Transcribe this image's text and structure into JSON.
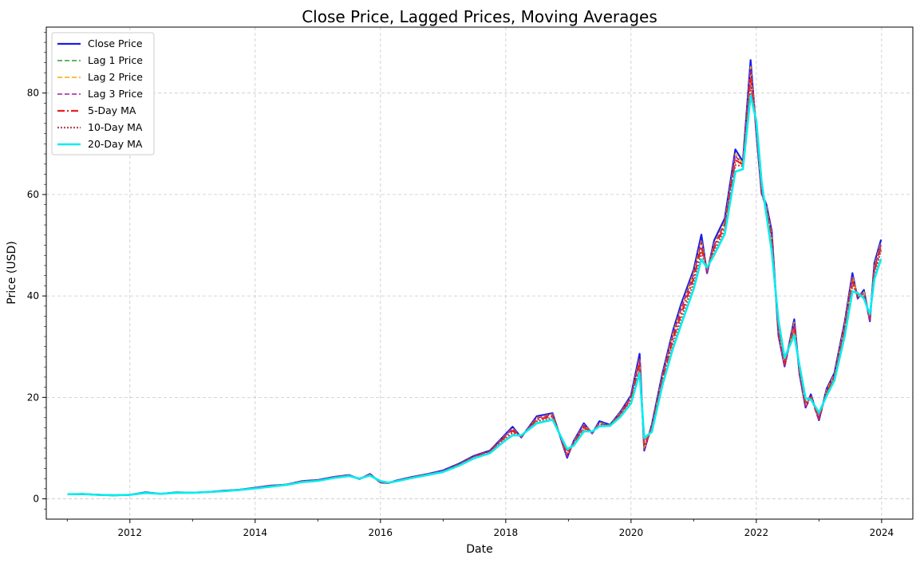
{
  "chart_data": {
    "type": "line",
    "title": "Close Price, Lagged Prices, Moving Averages",
    "xlabel": "Date",
    "ylabel": "Price (USD)",
    "x_ticks": [
      "2012",
      "2014",
      "2016",
      "2018",
      "2020",
      "2022",
      "2024"
    ],
    "y_ticks": [
      0,
      20,
      40,
      60,
      80
    ],
    "xlim": [
      "2010-09-01",
      "2024-07-01"
    ],
    "ylim": [
      -4,
      93
    ],
    "grid": true,
    "legend_position": "top-left",
    "x": [
      "2011-01-03",
      "2011-04-01",
      "2011-07-01",
      "2011-10-01",
      "2012-01-01",
      "2012-04-01",
      "2012-07-01",
      "2012-10-01",
      "2013-01-01",
      "2013-04-01",
      "2013-07-01",
      "2013-10-01",
      "2014-01-01",
      "2014-04-01",
      "2014-07-01",
      "2014-10-01",
      "2015-01-01",
      "2015-04-01",
      "2015-07-01",
      "2015-09-01",
      "2015-11-01",
      "2016-01-01",
      "2016-02-15",
      "2016-04-01",
      "2016-07-01",
      "2016-10-01",
      "2017-01-01",
      "2017-04-01",
      "2017-07-01",
      "2017-10-01",
      "2018-01-01",
      "2018-02-10",
      "2018-04-01",
      "2018-07-01",
      "2018-10-01",
      "2018-12-25",
      "2019-02-01",
      "2019-04-01",
      "2019-05-20",
      "2019-07-01",
      "2019-09-01",
      "2019-11-01",
      "2020-01-01",
      "2020-02-20",
      "2020-03-18",
      "2020-05-01",
      "2020-07-01",
      "2020-09-01",
      "2020-10-20",
      "2021-01-01",
      "2021-02-15",
      "2021-03-20",
      "2021-05-01",
      "2021-07-01",
      "2021-09-01",
      "2021-10-15",
      "2021-11-29",
      "2022-01-01",
      "2022-02-01",
      "2022-03-01",
      "2022-04-01",
      "2022-05-10",
      "2022-06-15",
      "2022-08-10",
      "2022-09-10",
      "2022-10-15",
      "2022-11-15",
      "2023-01-01",
      "2023-02-15",
      "2023-04-01",
      "2023-06-01",
      "2023-07-15",
      "2023-08-15",
      "2023-09-20",
      "2023-10-25",
      "2023-11-20",
      "2023-12-29"
    ],
    "series": [
      {
        "name": "Close Price",
        "color": "#1a1aee",
        "style": "solid",
        "width": 2.2,
        "values": [
          0.9,
          0.95,
          0.8,
          0.7,
          0.8,
          1.3,
          1.0,
          1.3,
          1.2,
          1.35,
          1.6,
          1.8,
          2.2,
          2.6,
          2.8,
          3.5,
          3.7,
          4.3,
          4.7,
          3.9,
          4.9,
          3.2,
          3.1,
          3.6,
          4.3,
          4.9,
          5.6,
          6.9,
          8.5,
          9.5,
          12.8,
          14.2,
          12.1,
          16.3,
          16.9,
          8.1,
          11.4,
          14.9,
          12.9,
          15.3,
          14.6,
          17.2,
          20.4,
          28.6,
          9.5,
          14.6,
          24.6,
          33.1,
          38.5,
          45.2,
          52.1,
          44.5,
          51.0,
          55.3,
          68.9,
          66.5,
          86.5,
          72.1,
          60.2,
          58.0,
          52.8,
          32.2,
          26.1,
          35.4,
          24.6,
          18.0,
          20.6,
          15.5,
          21.7,
          24.8,
          35.0,
          44.5,
          39.5,
          41.2,
          35.0,
          46.5,
          51.1
        ]
      },
      {
        "name": "Lag 1 Price",
        "color": "#2ca02c",
        "style": "dashed",
        "width": 1.6,
        "values": [
          0.9,
          0.95,
          0.8,
          0.7,
          0.8,
          1.25,
          1.0,
          1.25,
          1.2,
          1.35,
          1.55,
          1.8,
          2.15,
          2.55,
          2.8,
          3.45,
          3.65,
          4.25,
          4.65,
          3.9,
          4.85,
          3.25,
          3.1,
          3.55,
          4.25,
          4.85,
          5.5,
          6.8,
          8.4,
          9.4,
          12.6,
          13.9,
          12.2,
          16.0,
          16.7,
          8.4,
          11.2,
          14.6,
          13.0,
          15.0,
          14.5,
          17.0,
          20.1,
          27.8,
          9.8,
          14.3,
          24.1,
          32.5,
          37.8,
          44.6,
          51.0,
          44.8,
          50.3,
          54.6,
          68.0,
          66.2,
          85.2,
          72.6,
          60.5,
          57.6,
          52.1,
          32.6,
          26.3,
          34.8,
          24.9,
          18.3,
          20.3,
          15.7,
          21.4,
          24.5,
          34.5,
          43.9,
          39.8,
          40.8,
          35.3,
          45.9,
          50.6
        ]
      },
      {
        "name": "Lag 2 Price",
        "color": "#ffa500",
        "style": "dashed",
        "width": 1.6,
        "values": [
          0.9,
          0.95,
          0.8,
          0.7,
          0.8,
          1.25,
          1.0,
          1.25,
          1.2,
          1.35,
          1.55,
          1.8,
          2.15,
          2.55,
          2.8,
          3.45,
          3.65,
          4.25,
          4.65,
          3.9,
          4.85,
          3.25,
          3.1,
          3.55,
          4.25,
          4.85,
          5.5,
          6.8,
          8.4,
          9.4,
          12.6,
          13.9,
          12.2,
          16.0,
          16.7,
          8.4,
          11.2,
          14.6,
          13.0,
          15.0,
          14.5,
          17.0,
          20.1,
          27.8,
          9.8,
          14.3,
          24.1,
          32.5,
          37.8,
          44.6,
          51.0,
          44.8,
          50.3,
          54.6,
          68.0,
          66.2,
          85.2,
          72.6,
          60.5,
          57.6,
          52.1,
          32.6,
          26.3,
          34.8,
          24.9,
          18.3,
          20.3,
          15.7,
          21.4,
          24.5,
          34.5,
          43.9,
          39.8,
          40.8,
          35.3,
          45.9,
          50.6
        ]
      },
      {
        "name": "Lag 3 Price",
        "color": "#a0209a",
        "style": "dashed",
        "width": 1.6,
        "values": [
          0.9,
          0.95,
          0.8,
          0.7,
          0.8,
          1.25,
          1.0,
          1.25,
          1.2,
          1.35,
          1.55,
          1.8,
          2.15,
          2.55,
          2.8,
          3.45,
          3.65,
          4.25,
          4.65,
          3.9,
          4.85,
          3.25,
          3.1,
          3.55,
          4.25,
          4.85,
          5.5,
          6.8,
          8.4,
          9.4,
          12.5,
          13.8,
          12.2,
          15.9,
          16.6,
          8.3,
          11.1,
          14.5,
          12.9,
          14.9,
          14.4,
          16.9,
          20.0,
          27.5,
          9.6,
          14.1,
          23.9,
          32.2,
          37.5,
          44.2,
          50.6,
          44.3,
          50.0,
          54.2,
          67.6,
          65.8,
          84.7,
          72.1,
          60.0,
          57.2,
          51.8,
          32.1,
          25.9,
          34.4,
          24.5,
          17.9,
          20.0,
          15.4,
          21.1,
          24.2,
          34.2,
          43.6,
          39.4,
          40.5,
          34.9,
          45.5,
          50.2
        ]
      },
      {
        "name": "5-Day MA",
        "color": "#e8201c",
        "style": "dashdot",
        "width": 2.2,
        "values": [
          0.9,
          0.95,
          0.8,
          0.7,
          0.8,
          1.2,
          1.0,
          1.25,
          1.2,
          1.35,
          1.55,
          1.8,
          2.1,
          2.5,
          2.8,
          3.4,
          3.6,
          4.2,
          4.6,
          3.9,
          4.8,
          3.3,
          3.1,
          3.5,
          4.2,
          4.8,
          5.4,
          6.7,
          8.3,
          9.3,
          12.3,
          13.4,
          12.3,
          15.6,
          16.3,
          8.9,
          10.9,
          14.1,
          13.1,
          14.7,
          14.4,
          16.7,
          19.7,
          26.6,
          10.5,
          13.9,
          23.5,
          31.4,
          36.5,
          43.5,
          49.6,
          45.2,
          49.5,
          53.8,
          66.8,
          65.9,
          82.9,
          73.5,
          61.0,
          57.0,
          51.0,
          33.5,
          26.8,
          33.9,
          25.4,
          18.8,
          20.0,
          16.1,
          21.0,
          24.0,
          33.6,
          42.8,
          40.3,
          40.3,
          35.8,
          44.9,
          49.7
        ]
      },
      {
        "name": "10-Day MA",
        "color": "#b84a4a",
        "style": "dotted",
        "width": 2.2,
        "values": [
          0.9,
          0.95,
          0.8,
          0.7,
          0.8,
          1.2,
          1.0,
          1.25,
          1.2,
          1.35,
          1.55,
          1.8,
          2.1,
          2.45,
          2.8,
          3.35,
          3.6,
          4.15,
          4.55,
          3.95,
          4.7,
          3.4,
          3.15,
          3.5,
          4.15,
          4.75,
          5.35,
          6.6,
          8.2,
          9.2,
          12.0,
          13.0,
          12.4,
          15.3,
          16.0,
          9.3,
          10.7,
          13.8,
          13.2,
          14.5,
          14.4,
          16.5,
          19.3,
          25.8,
          11.2,
          13.6,
          23.0,
          30.6,
          35.6,
          42.6,
          48.5,
          45.5,
          48.9,
          53.1,
          65.8,
          65.6,
          81.4,
          74.0,
          61.5,
          56.6,
          50.0,
          34.2,
          27.2,
          33.2,
          25.8,
          19.2,
          19.8,
          16.5,
          20.7,
          23.7,
          33.0,
          42.0,
          40.5,
          40.0,
          36.1,
          44.2,
          49.0
        ]
      },
      {
        "name": "20-Day MA",
        "color": "#00eeee",
        "style": "solid",
        "width": 2.6,
        "values": [
          0.9,
          0.95,
          0.8,
          0.7,
          0.8,
          1.15,
          1.0,
          1.2,
          1.2,
          1.35,
          1.5,
          1.75,
          2.05,
          2.4,
          2.75,
          3.3,
          3.55,
          4.1,
          4.5,
          4.0,
          4.6,
          3.5,
          3.2,
          3.45,
          4.1,
          4.7,
          5.3,
          6.5,
          8.0,
          9.0,
          11.6,
          12.5,
          12.5,
          14.9,
          15.6,
          9.8,
          10.5,
          13.3,
          13.3,
          14.3,
          14.4,
          16.2,
          18.8,
          24.8,
          12.0,
          13.2,
          22.3,
          29.6,
          34.4,
          41.4,
          47.2,
          45.6,
          48.1,
          52.2,
          64.5,
          65.0,
          79.5,
          74.5,
          62.5,
          56.0,
          48.8,
          35.2,
          27.8,
          32.3,
          26.3,
          19.8,
          19.6,
          17.0,
          20.3,
          23.3,
          32.2,
          40.9,
          40.6,
          39.5,
          36.4,
          43.3,
          47.3
        ]
      }
    ]
  }
}
